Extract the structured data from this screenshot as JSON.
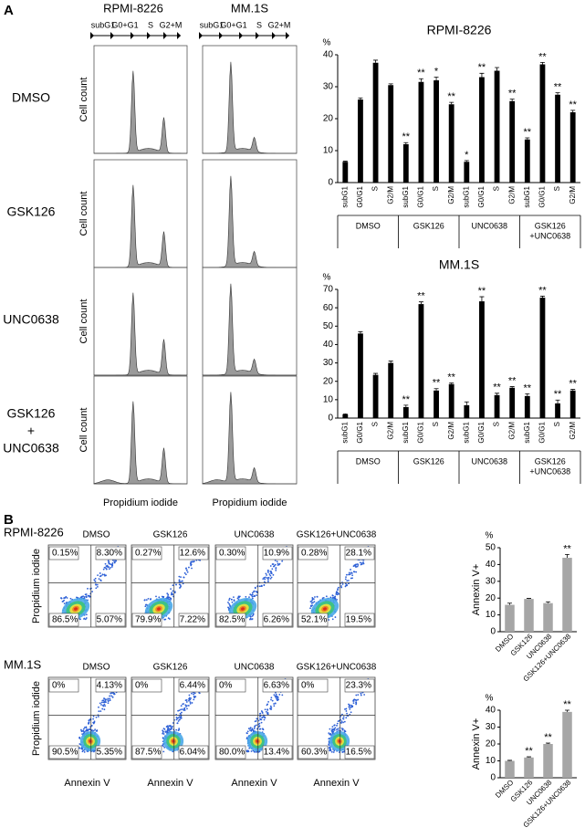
{
  "panel_a": {
    "label": "A",
    "columns": [
      "RPMI-8226",
      "MM.1S"
    ],
    "phases": [
      "subG1",
      "G0+G1",
      "S",
      "G2+M"
    ],
    "rows": [
      "DMSO",
      "GSK126",
      "UNC0638",
      [
        "GSK126",
        "+",
        "UNC0638"
      ]
    ],
    "y_label": "Cell count",
    "x_label": "Propidium iodide"
  },
  "panel_b": {
    "label": "B",
    "y_label": "Propidium iodide",
    "x_label": "Annexin V",
    "rows": [
      {
        "name": "RPMI-8226",
        "samples": [
          {
            "name": "DMSO",
            "quadrants": [
              "0.15%",
              "8.30%",
              "86.5%",
              "5.07%"
            ]
          },
          {
            "name": "GSK126",
            "quadrants": [
              "0.27%",
              "12.6%",
              "79.9%",
              "7.22%"
            ]
          },
          {
            "name": "UNC0638",
            "quadrants": [
              "0.30%",
              "10.9%",
              "82.5%",
              "6.26%"
            ]
          },
          {
            "name": "GSK126+UNC0638",
            "quadrants": [
              "0.28%",
              "28.1%",
              "52.1%",
              "19.5%"
            ]
          }
        ]
      },
      {
        "name": "MM.1S",
        "samples": [
          {
            "name": "DMSO",
            "quadrants": [
              "0%",
              "4.13%",
              "90.5%",
              "5.35%"
            ]
          },
          {
            "name": "GSK126",
            "quadrants": [
              "0%",
              "6.44%",
              "87.5%",
              "6.04%"
            ]
          },
          {
            "name": "UNC0638",
            "quadrants": [
              "0%",
              "6.63%",
              "80.0%",
              "13.4%"
            ]
          },
          {
            "name": "GSK126+UNC0638",
            "quadrants": [
              "0%",
              "23.3%",
              "60.3%",
              "16.5%"
            ]
          }
        ]
      }
    ]
  },
  "chart_data": [
    {
      "type": "bar",
      "title": "RPMI-8226",
      "y_unit": "%",
      "color": "#000000",
      "categories": [
        "subG1",
        "G0/G1",
        "S",
        "G2/M",
        "subG1",
        "G0/G1",
        "S",
        "G2/M",
        "subG1",
        "G0/G1",
        "S",
        "G2/M",
        "subG1",
        "G0/G1",
        "S",
        "G2/M"
      ],
      "groups": [
        "DMSO",
        "GSK126",
        "UNC0638",
        [
          "GSK126",
          "+UNC0638"
        ]
      ],
      "values": [
        6.5,
        26,
        37.5,
        30.5,
        12,
        31.5,
        32,
        24.5,
        6.5,
        33,
        35,
        25.5,
        13.5,
        37,
        27.5,
        22
      ],
      "errors": [
        0.2,
        0.5,
        0.8,
        0.4,
        0.5,
        1,
        1,
        0.6,
        0.4,
        1.2,
        1,
        0.6,
        0.5,
        0.6,
        0.6,
        0.6
      ],
      "significance": [
        null,
        null,
        null,
        null,
        "**",
        "**",
        "*",
        "**",
        "*",
        "**",
        null,
        "**",
        "**",
        "**",
        "**",
        "**"
      ],
      "ylim": [
        0,
        40
      ],
      "yticks": [
        0,
        10,
        20,
        30,
        40
      ]
    },
    {
      "type": "bar",
      "title": "MM.1S",
      "y_unit": "%",
      "color": "#000000",
      "categories": [
        "subG1",
        "G0/G1",
        "S",
        "G2/M",
        "subG1",
        "G0/G1",
        "S",
        "G2/M",
        "subG1",
        "G0/G1",
        "S",
        "G2/M",
        "subG1",
        "G0/G1",
        "S",
        "G2/M"
      ],
      "groups": [
        "DMSO",
        "GSK126",
        "UNC0638",
        [
          "GSK126",
          "+UNC0638"
        ]
      ],
      "values": [
        2,
        46,
        23.5,
        30,
        6,
        62,
        15,
        18.5,
        7,
        63.5,
        12.5,
        16.5,
        12,
        65.5,
        8,
        15
      ],
      "errors": [
        0.3,
        1,
        0.8,
        1,
        1,
        1.2,
        1,
        0.6,
        1.8,
        2.5,
        1,
        0.6,
        1.2,
        0.8,
        1.8,
        0.6
      ],
      "significance": [
        null,
        null,
        null,
        null,
        "**",
        "**",
        "**",
        "**",
        null,
        "**",
        "**",
        "**",
        "**",
        "**",
        "**",
        "**"
      ],
      "ylim": [
        0,
        70
      ],
      "yticks": [
        0,
        10,
        20,
        30,
        40,
        50,
        60,
        70
      ]
    },
    {
      "type": "bar",
      "y_unit": "%",
      "y_label": "Annexin V+",
      "color": "#a6a6a6",
      "categories": [
        "DMSO",
        "GSK126",
        "UNC0638",
        "GSK126+UNC0638"
      ],
      "values": [
        16,
        19.5,
        17,
        44
      ],
      "errors": [
        1,
        0.3,
        0.8,
        2
      ],
      "significance": [
        null,
        null,
        null,
        "**"
      ],
      "ylim": [
        0,
        50
      ],
      "yticks": [
        0,
        10,
        20,
        30,
        40,
        50
      ]
    },
    {
      "type": "bar",
      "y_unit": "%",
      "y_label": "Annexin V+",
      "color": "#a6a6a6",
      "categories": [
        "DMSO",
        "GSK126",
        "UNC0638",
        "GSK126+UNC0638"
      ],
      "values": [
        10,
        12,
        20,
        39
      ],
      "errors": [
        0.3,
        0.4,
        0.5,
        1
      ],
      "significance": [
        null,
        "**",
        "**",
        "**"
      ],
      "ylim": [
        0,
        40
      ],
      "yticks": [
        0,
        10,
        20,
        30,
        40
      ]
    }
  ]
}
